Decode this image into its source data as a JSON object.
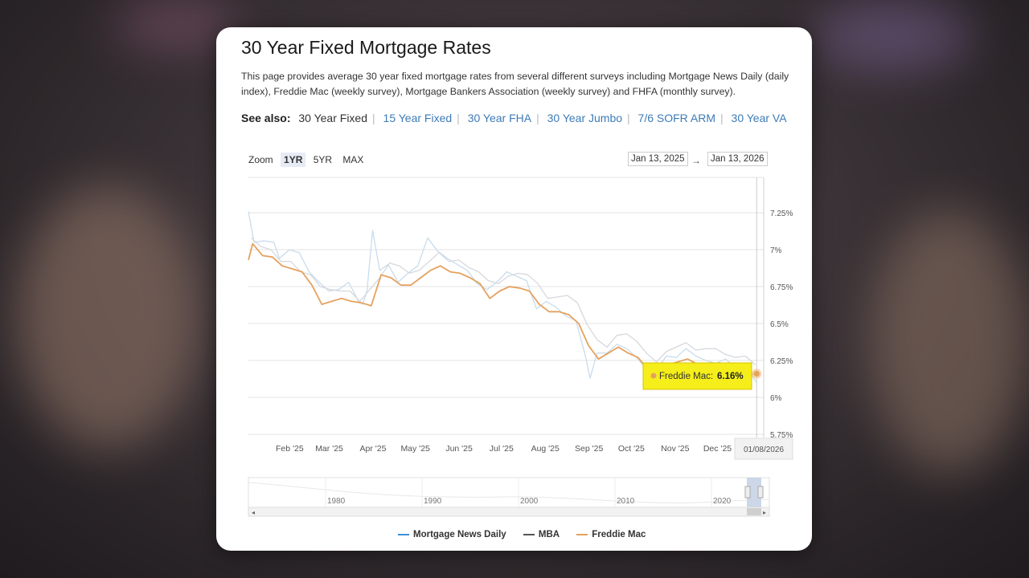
{
  "page": {
    "title": "30 Year Fixed Mortgage Rates",
    "description": "This page provides average 30 year fixed mortgage rates from several different surveys including Mortgage News Daily (daily index), Freddie Mac (weekly survey), Mortgage Bankers Association (weekly survey) and FHFA (monthly survey).",
    "see_also_label": "See also:",
    "see_also": [
      {
        "label": "30 Year Fixed",
        "current": true
      },
      {
        "label": "15 Year Fixed",
        "current": false
      },
      {
        "label": "30 Year FHA",
        "current": false
      },
      {
        "label": "30 Year Jumbo",
        "current": false
      },
      {
        "label": "7/6 SOFR ARM",
        "current": false
      },
      {
        "label": "30 Year VA",
        "current": false
      }
    ]
  },
  "controls": {
    "zoom_label": "Zoom",
    "zoom_options": [
      {
        "label": "1YR",
        "active": true
      },
      {
        "label": "5YR",
        "active": false
      },
      {
        "label": "MAX",
        "active": false
      }
    ],
    "range_start": "Jan 13, 2025",
    "range_arrow": "→",
    "range_end": "Jan 13, 2026"
  },
  "tooltip": {
    "series": "Freddie Mac:",
    "value": "6.16%",
    "date": "01/08/2026"
  },
  "chart_data": {
    "type": "line",
    "x_ticks": [
      "Feb '25",
      "Mar '25",
      "Apr '25",
      "May '25",
      "Jun '25",
      "Jul '25",
      "Aug '25",
      "Sep '25",
      "Oct '25",
      "Nov '25",
      "Dec '25"
    ],
    "y_ticks": [
      "7.25%",
      "7%",
      "6.75%",
      "6.5%",
      "6.25%",
      "6%",
      "5.75%"
    ],
    "ylim": [
      5.75,
      7.25
    ],
    "x_range": [
      "2025-01-13",
      "2026-01-13"
    ],
    "grid": true,
    "legend_position": "bottom",
    "series": [
      {
        "name": "Mortgage News Daily",
        "color": "#c9dcec",
        "points": [
          [
            "2025-01-13",
            7.26
          ],
          [
            "2025-01-17",
            7.05
          ],
          [
            "2025-01-24",
            7.06
          ],
          [
            "2025-01-31",
            7.05
          ],
          [
            "2025-02-04",
            6.94
          ],
          [
            "2025-02-11",
            7.0
          ],
          [
            "2025-02-18",
            6.98
          ],
          [
            "2025-02-25",
            6.85
          ],
          [
            "2025-03-04",
            6.78
          ],
          [
            "2025-03-11",
            6.72
          ],
          [
            "2025-03-18",
            6.73
          ],
          [
            "2025-03-25",
            6.78
          ],
          [
            "2025-04-01",
            6.65
          ],
          [
            "2025-04-04",
            6.63
          ],
          [
            "2025-04-07",
            6.72
          ],
          [
            "2025-04-11",
            7.13
          ],
          [
            "2025-04-16",
            6.86
          ],
          [
            "2025-04-22",
            6.9
          ],
          [
            "2025-04-29",
            6.78
          ],
          [
            "2025-05-06",
            6.84
          ],
          [
            "2025-05-13",
            6.89
          ],
          [
            "2025-05-20",
            7.08
          ],
          [
            "2025-05-27",
            6.99
          ],
          [
            "2025-06-03",
            6.94
          ],
          [
            "2025-06-10",
            6.9
          ],
          [
            "2025-06-17",
            6.86
          ],
          [
            "2025-06-24",
            6.77
          ],
          [
            "2025-07-01",
            6.73
          ],
          [
            "2025-07-08",
            6.78
          ],
          [
            "2025-07-15",
            6.85
          ],
          [
            "2025-07-22",
            6.82
          ],
          [
            "2025-07-29",
            6.79
          ],
          [
            "2025-08-05",
            6.6
          ],
          [
            "2025-08-12",
            6.65
          ],
          [
            "2025-08-19",
            6.61
          ],
          [
            "2025-08-26",
            6.55
          ],
          [
            "2025-09-02",
            6.52
          ],
          [
            "2025-09-09",
            6.27
          ],
          [
            "2025-09-12",
            6.13
          ],
          [
            "2025-09-17",
            6.3
          ],
          [
            "2025-09-24",
            6.3
          ],
          [
            "2025-10-01",
            6.36
          ],
          [
            "2025-10-08",
            6.33
          ],
          [
            "2025-10-15",
            6.27
          ],
          [
            "2025-10-22",
            6.19
          ],
          [
            "2025-10-29",
            6.18
          ],
          [
            "2025-11-05",
            6.28
          ],
          [
            "2025-11-12",
            6.27
          ],
          [
            "2025-11-19",
            6.33
          ],
          [
            "2025-11-26",
            6.28
          ],
          [
            "2025-12-03",
            6.25
          ],
          [
            "2025-12-10",
            6.23
          ],
          [
            "2025-12-17",
            6.26
          ],
          [
            "2025-12-24",
            6.2
          ],
          [
            "2025-12-31",
            6.21
          ],
          [
            "2026-01-08",
            6.1
          ]
        ]
      },
      {
        "name": "MBA",
        "color": "#d6d8de",
        "points": [
          [
            "2025-01-15",
            7.08
          ],
          [
            "2025-01-22",
            7.02
          ],
          [
            "2025-01-29",
            7.0
          ],
          [
            "2025-02-05",
            6.92
          ],
          [
            "2025-02-12",
            6.92
          ],
          [
            "2025-02-19",
            6.85
          ],
          [
            "2025-02-26",
            6.83
          ],
          [
            "2025-03-05",
            6.75
          ],
          [
            "2025-03-12",
            6.73
          ],
          [
            "2025-03-19",
            6.72
          ],
          [
            "2025-03-26",
            6.72
          ],
          [
            "2025-04-02",
            6.65
          ],
          [
            "2025-04-09",
            6.73
          ],
          [
            "2025-04-16",
            6.81
          ],
          [
            "2025-04-23",
            6.91
          ],
          [
            "2025-04-30",
            6.89
          ],
          [
            "2025-05-07",
            6.84
          ],
          [
            "2025-05-14",
            6.86
          ],
          [
            "2025-05-21",
            6.92
          ],
          [
            "2025-05-28",
            6.98
          ],
          [
            "2025-06-04",
            6.92
          ],
          [
            "2025-06-11",
            6.93
          ],
          [
            "2025-06-18",
            6.88
          ],
          [
            "2025-06-25",
            6.85
          ],
          [
            "2025-07-02",
            6.79
          ],
          [
            "2025-07-09",
            6.77
          ],
          [
            "2025-07-16",
            6.82
          ],
          [
            "2025-07-23",
            6.84
          ],
          [
            "2025-07-30",
            6.83
          ],
          [
            "2025-08-06",
            6.77
          ],
          [
            "2025-08-13",
            6.67
          ],
          [
            "2025-08-20",
            6.68
          ],
          [
            "2025-08-27",
            6.69
          ],
          [
            "2025-09-03",
            6.64
          ],
          [
            "2025-09-10",
            6.49
          ],
          [
            "2025-09-17",
            6.39
          ],
          [
            "2025-09-24",
            6.34
          ],
          [
            "2025-10-01",
            6.42
          ],
          [
            "2025-10-08",
            6.43
          ],
          [
            "2025-10-15",
            6.38
          ],
          [
            "2025-10-22",
            6.3
          ],
          [
            "2025-10-29",
            6.24
          ],
          [
            "2025-11-05",
            6.31
          ],
          [
            "2025-11-12",
            6.34
          ],
          [
            "2025-11-19",
            6.37
          ],
          [
            "2025-11-26",
            6.32
          ],
          [
            "2025-12-03",
            6.33
          ],
          [
            "2025-12-10",
            6.33
          ],
          [
            "2025-12-17",
            6.29
          ],
          [
            "2025-12-24",
            6.27
          ],
          [
            "2025-12-31",
            6.28
          ],
          [
            "2026-01-07",
            6.22
          ]
        ]
      },
      {
        "name": "Freddie Mac",
        "color": "#e5a15e",
        "points": [
          [
            "2025-01-13",
            6.93
          ],
          [
            "2025-01-16",
            7.04
          ],
          [
            "2025-01-23",
            6.96
          ],
          [
            "2025-01-30",
            6.95
          ],
          [
            "2025-02-06",
            6.89
          ],
          [
            "2025-02-13",
            6.87
          ],
          [
            "2025-02-20",
            6.85
          ],
          [
            "2025-02-27",
            6.76
          ],
          [
            "2025-03-06",
            6.63
          ],
          [
            "2025-03-13",
            6.65
          ],
          [
            "2025-03-20",
            6.67
          ],
          [
            "2025-03-27",
            6.65
          ],
          [
            "2025-04-03",
            6.64
          ],
          [
            "2025-04-10",
            6.62
          ],
          [
            "2025-04-17",
            6.83
          ],
          [
            "2025-04-24",
            6.81
          ],
          [
            "2025-05-01",
            6.76
          ],
          [
            "2025-05-08",
            6.76
          ],
          [
            "2025-05-15",
            6.81
          ],
          [
            "2025-05-22",
            6.86
          ],
          [
            "2025-05-29",
            6.89
          ],
          [
            "2025-06-05",
            6.85
          ],
          [
            "2025-06-12",
            6.84
          ],
          [
            "2025-06-19",
            6.81
          ],
          [
            "2025-06-26",
            6.77
          ],
          [
            "2025-07-03",
            6.67
          ],
          [
            "2025-07-10",
            6.72
          ],
          [
            "2025-07-17",
            6.75
          ],
          [
            "2025-07-24",
            6.74
          ],
          [
            "2025-07-31",
            6.72
          ],
          [
            "2025-08-07",
            6.63
          ],
          [
            "2025-08-14",
            6.58
          ],
          [
            "2025-08-21",
            6.58
          ],
          [
            "2025-08-28",
            6.56
          ],
          [
            "2025-09-04",
            6.5
          ],
          [
            "2025-09-11",
            6.35
          ],
          [
            "2025-09-18",
            6.26
          ],
          [
            "2025-09-25",
            6.3
          ],
          [
            "2025-10-02",
            6.34
          ],
          [
            "2025-10-09",
            6.3
          ],
          [
            "2025-10-16",
            6.27
          ],
          [
            "2025-10-23",
            6.19
          ],
          [
            "2025-10-30",
            6.17
          ],
          [
            "2025-11-06",
            6.22
          ],
          [
            "2025-11-13",
            6.24
          ],
          [
            "2025-11-20",
            6.26
          ],
          [
            "2025-11-26",
            6.23
          ],
          [
            "2025-12-04",
            6.19
          ],
          [
            "2025-12-11",
            6.22
          ],
          [
            "2025-12-18",
            6.21
          ],
          [
            "2025-12-24",
            6.18
          ],
          [
            "2025-12-31",
            6.15
          ],
          [
            "2026-01-08",
            6.16
          ]
        ]
      }
    ],
    "navigator": {
      "x_ticks": [
        "1980",
        "1990",
        "2000",
        "2010",
        "2020"
      ]
    }
  }
}
